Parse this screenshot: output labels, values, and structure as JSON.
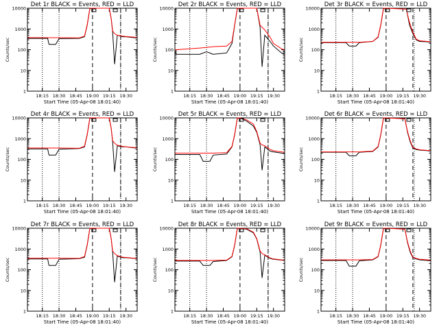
{
  "colors": {
    "events": "#000000",
    "lld": "#ff0000",
    "background": "#ffffff"
  },
  "xaxis": {
    "label": "Start Time (05-Apr-08 18:01:40)",
    "ticks": [
      "18:15",
      "18:30",
      "18:45",
      "19:00",
      "19:15",
      "19:30"
    ],
    "tick_hours": [
      18.25,
      18.5,
      18.75,
      19.0,
      19.25,
      19.5
    ],
    "range_hours": [
      18.028,
      19.667
    ]
  },
  "yaxis": {
    "label": "Counts/sec",
    "scale": "log",
    "range": [
      1,
      10000
    ],
    "ticks": [
      "1",
      "10",
      "100",
      "1000",
      "10000"
    ]
  },
  "chart_data": [
    {
      "type": "line",
      "title": "Det 1r BLACK = Events, RED = LLD",
      "x": [
        18.03,
        18.33,
        18.35,
        18.45,
        18.5,
        18.8,
        18.88,
        18.92,
        18.96,
        19.0,
        19.25,
        19.28,
        19.3,
        19.33,
        19.37,
        19.45,
        19.5,
        19.62,
        19.66
      ],
      "series": [
        {
          "name": "Events",
          "values": [
            350,
            350,
            180,
            180,
            340,
            350,
            420,
            1500,
            9500,
            10000,
            10000,
            3000,
            700,
            20,
            500,
            420,
            420,
            380,
            370
          ]
        },
        {
          "name": "LLD",
          "values": [
            380,
            380,
            380,
            380,
            380,
            370,
            450,
            1600,
            10000,
            10000,
            10000,
            3000,
            800,
            600,
            500,
            450,
            430,
            400,
            390
          ]
        }
      ]
    },
    {
      "type": "line",
      "title": "Det 2r BLACK = Events, RED = LLD",
      "x": [
        18.03,
        18.05,
        18.4,
        18.5,
        18.6,
        18.8,
        18.88,
        18.92,
        18.96,
        19.0,
        19.25,
        19.3,
        19.33,
        19.37,
        19.45,
        19.5,
        19.62,
        19.66
      ],
      "series": [
        {
          "name": "Events",
          "values": [
            80,
            60,
            60,
            80,
            60,
            70,
            200,
            1500,
            9500,
            10000,
            10000,
            1200,
            15,
            500,
            250,
            150,
            70,
            60
          ]
        },
        {
          "name": "LLD",
          "values": [
            100,
            100,
            120,
            130,
            140,
            150,
            250,
            1600,
            10000,
            10000,
            10000,
            1500,
            1200,
            900,
            400,
            200,
            110,
            100
          ]
        }
      ]
    },
    {
      "type": "line",
      "title": "Det 3r BLACK = Events, RED = LLD",
      "x": [
        18.03,
        18.4,
        18.45,
        18.55,
        18.6,
        18.8,
        18.88,
        18.92,
        18.96,
        19.0,
        19.3,
        19.35,
        19.4,
        19.45,
        19.5,
        19.62,
        19.66
      ],
      "series": [
        {
          "name": "Events",
          "values": [
            220,
            220,
            150,
            150,
            220,
            250,
            400,
            1500,
            9500,
            10000,
            10000,
            1500,
            600,
            300,
            250,
            240,
            230
          ]
        },
        {
          "name": "LLD",
          "values": [
            230,
            230,
            230,
            230,
            230,
            250,
            420,
            1600,
            10000,
            10000,
            9000,
            2000,
            700,
            320,
            270,
            250,
            240
          ]
        }
      ]
    },
    {
      "type": "line",
      "title": "Det 4r BLACK = Events, RED = LLD",
      "x": [
        18.03,
        18.33,
        18.35,
        18.45,
        18.5,
        18.8,
        18.88,
        18.92,
        18.96,
        19.0,
        19.25,
        19.28,
        19.3,
        19.33,
        19.37,
        19.45,
        19.5,
        19.62,
        19.66
      ],
      "series": [
        {
          "name": "Events",
          "values": [
            320,
            320,
            160,
            160,
            310,
            330,
            400,
            1500,
            9500,
            10000,
            10000,
            3000,
            700,
            25,
            450,
            400,
            400,
            360,
            350
          ]
        },
        {
          "name": "LLD",
          "values": [
            350,
            350,
            350,
            350,
            350,
            340,
            430,
            1600,
            10000,
            10000,
            10000,
            3000,
            800,
            600,
            480,
            420,
            400,
            370,
            360
          ]
        }
      ]
    },
    {
      "type": "line",
      "title": "Det 5r BLACK = Events, RED = LLD",
      "x": [
        18.03,
        18.4,
        18.45,
        18.55,
        18.6,
        18.8,
        18.88,
        18.92,
        18.96,
        19.0,
        19.1,
        19.2,
        19.25,
        19.3,
        19.33,
        19.37,
        19.45,
        19.5,
        19.62,
        19.66
      ],
      "series": [
        {
          "name": "Events",
          "values": [
            170,
            170,
            80,
            80,
            160,
            180,
            400,
            1500,
            9500,
            10000,
            7000,
            4000,
            2000,
            500,
            30,
            400,
            250,
            230,
            200,
            190
          ]
        },
        {
          "name": "LLD",
          "values": [
            200,
            200,
            200,
            200,
            200,
            210,
            420,
            1600,
            10000,
            10000,
            8000,
            5000,
            2200,
            600,
            500,
            450,
            300,
            260,
            230,
            220
          ]
        }
      ]
    },
    {
      "type": "line",
      "title": "Det 6r BLACK = Events, RED = LLD",
      "x": [
        18.03,
        18.4,
        18.45,
        18.55,
        18.6,
        18.8,
        18.88,
        18.92,
        18.96,
        19.0,
        19.28,
        19.32,
        19.36,
        19.4,
        19.45,
        19.5,
        19.62,
        19.66
      ],
      "series": [
        {
          "name": "Events",
          "values": [
            220,
            220,
            150,
            150,
            220,
            240,
            400,
            1500,
            9500,
            10000,
            9500,
            2000,
            700,
            350,
            300,
            280,
            260,
            250
          ]
        },
        {
          "name": "LLD",
          "values": [
            230,
            230,
            230,
            230,
            230,
            250,
            420,
            1600,
            10000,
            10000,
            9000,
            2200,
            800,
            380,
            320,
            290,
            270,
            260
          ]
        }
      ]
    },
    {
      "type": "line",
      "title": "Det 7r BLACK = Events, RED = LLD",
      "x": [
        18.03,
        18.33,
        18.35,
        18.45,
        18.5,
        18.8,
        18.88,
        18.92,
        18.96,
        19.0,
        19.25,
        19.28,
        19.3,
        19.33,
        19.37,
        19.45,
        19.5,
        19.62,
        19.66
      ],
      "series": [
        {
          "name": "Events",
          "values": [
            330,
            330,
            160,
            160,
            320,
            340,
            400,
            1500,
            9500,
            10000,
            10000,
            3000,
            700,
            25,
            450,
            380,
            380,
            350,
            340
          ]
        },
        {
          "name": "LLD",
          "values": [
            360,
            360,
            360,
            360,
            360,
            350,
            430,
            1600,
            10000,
            10000,
            10000,
            3000,
            800,
            600,
            480,
            400,
            390,
            360,
            350
          ]
        }
      ]
    },
    {
      "type": "line",
      "title": "Det 8r BLACK = Events, RED = LLD",
      "x": [
        18.03,
        18.4,
        18.45,
        18.55,
        18.6,
        18.8,
        18.88,
        18.92,
        18.96,
        19.0,
        19.1,
        19.2,
        19.25,
        19.3,
        19.33,
        19.37,
        19.45,
        19.5,
        19.62,
        19.66
      ],
      "series": [
        {
          "name": "Events",
          "values": [
            260,
            260,
            160,
            160,
            250,
            280,
            420,
            1500,
            9500,
            10000,
            9000,
            6000,
            3000,
            700,
            40,
            500,
            350,
            320,
            290,
            280
          ]
        },
        {
          "name": "LLD",
          "values": [
            280,
            280,
            280,
            280,
            280,
            290,
            440,
            1600,
            10000,
            10000,
            9500,
            6500,
            3200,
            800,
            600,
            520,
            370,
            330,
            300,
            290
          ]
        }
      ]
    },
    {
      "type": "line",
      "title": "Det 9r BLACK = Events, RED = LLD",
      "x": [
        18.03,
        18.4,
        18.45,
        18.55,
        18.6,
        18.8,
        18.88,
        18.92,
        18.96,
        19.0,
        19.28,
        19.32,
        19.36,
        19.4,
        19.45,
        19.5,
        19.62,
        19.66
      ],
      "series": [
        {
          "name": "Events",
          "values": [
            280,
            280,
            150,
            150,
            270,
            300,
            420,
            1500,
            9500,
            10000,
            9500,
            2000,
            700,
            380,
            330,
            300,
            280,
            270
          ]
        },
        {
          "name": "LLD",
          "values": [
            300,
            300,
            300,
            300,
            300,
            310,
            440,
            1600,
            10000,
            10000,
            9000,
            2200,
            800,
            400,
            350,
            320,
            300,
            290
          ]
        }
      ]
    }
  ]
}
